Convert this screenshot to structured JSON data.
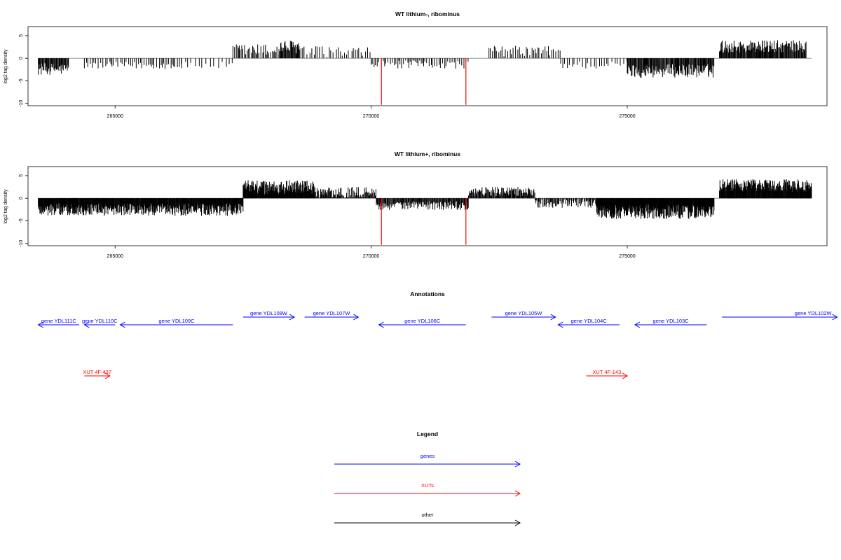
{
  "chart_data": [
    {
      "type": "bar",
      "title": "WT lithium-, ribominus",
      "ylabel": "log2 tag density",
      "xlim": [
        263300,
        278900
      ],
      "ylim": [
        -10.5,
        7
      ],
      "x_ticks": [
        265000,
        270000,
        275000
      ],
      "y_ticks": [
        5,
        0,
        -5,
        -10
      ],
      "y_tick_labels": [
        "5",
        "0",
        "-5",
        "-10"
      ],
      "baseline_range": [
        263500,
        278600
      ],
      "regions": [
        {
          "start": 263500,
          "end": 264100,
          "mean": -2.4,
          "amp": 1.3,
          "density": 0.08
        },
        {
          "start": 264400,
          "end": 266300,
          "mean": -1.6,
          "amp": 0.8,
          "density": 0.025
        },
        {
          "start": 266300,
          "end": 267300,
          "mean": -1.6,
          "amp": 0.8,
          "density": 0.015
        },
        {
          "start": 267300,
          "end": 268200,
          "mean": 1.8,
          "amp": 1.4,
          "density": 0.035
        },
        {
          "start": 268200,
          "end": 268600,
          "mean": 2.5,
          "amp": 1.5,
          "density": 0.08
        },
        {
          "start": 268600,
          "end": 269400,
          "mean": 1.5,
          "amp": 1.2,
          "density": 0.02
        },
        {
          "start": 269400,
          "end": 270000,
          "mean": 1.2,
          "amp": 1.2,
          "density": 0.02
        },
        {
          "start": 270000,
          "end": 271900,
          "mean": -1.4,
          "amp": 0.9,
          "density": 0.03
        },
        {
          "start": 272300,
          "end": 273700,
          "mean": 1.6,
          "amp": 1.2,
          "density": 0.03
        },
        {
          "start": 273700,
          "end": 275000,
          "mean": -1.5,
          "amp": 0.9,
          "density": 0.02
        },
        {
          "start": 275000,
          "end": 276700,
          "mean": -2.8,
          "amp": 1.5,
          "density": 0.08
        },
        {
          "start": 276800,
          "end": 278500,
          "mean": 2.6,
          "amp": 1.4,
          "density": 0.08
        }
      ],
      "highlight_bars": [
        {
          "x": 270200,
          "y": -10.3
        },
        {
          "x": 271850,
          "y": -10.3
        }
      ]
    },
    {
      "type": "bar",
      "title": "WT lithium+, ribominus",
      "ylabel": "log2 tag density",
      "xlim": [
        263300,
        278900
      ],
      "ylim": [
        -10.5,
        7
      ],
      "x_ticks": [
        265000,
        270000,
        275000
      ],
      "y_ticks": [
        5,
        0,
        -5,
        -10
      ],
      "y_tick_labels": [
        "5",
        "0",
        "-5",
        "-10"
      ],
      "baseline_range": [
        263500,
        278600
      ],
      "regions": [
        {
          "start": 263500,
          "end": 267500,
          "mean": -2.5,
          "amp": 1.4,
          "density": 0.12
        },
        {
          "start": 267500,
          "end": 268900,
          "mean": 2.4,
          "amp": 1.6,
          "density": 0.13
        },
        {
          "start": 268900,
          "end": 270100,
          "mean": 1.3,
          "amp": 1.2,
          "density": 0.08
        },
        {
          "start": 270100,
          "end": 271900,
          "mean": -1.6,
          "amp": 1.0,
          "density": 0.08
        },
        {
          "start": 271900,
          "end": 273200,
          "mean": 1.5,
          "amp": 1.0,
          "density": 0.08
        },
        {
          "start": 273200,
          "end": 274400,
          "mean": -1.2,
          "amp": 1.0,
          "density": 0.06
        },
        {
          "start": 274400,
          "end": 276700,
          "mean": -3.0,
          "amp": 1.6,
          "density": 0.14
        },
        {
          "start": 276800,
          "end": 278600,
          "mean": 2.8,
          "amp": 1.4,
          "density": 0.12
        }
      ],
      "highlight_bars": [
        {
          "x": 270200,
          "y": -10.3
        },
        {
          "x": 271850,
          "y": -10.3
        }
      ]
    }
  ],
  "annotations": {
    "title": "Annotations",
    "genes": [
      {
        "label": "gene YDL111C",
        "start": 263500,
        "end": 264300,
        "strand": "-",
        "row": 1
      },
      {
        "label": "gene YDL110C",
        "start": 264400,
        "end": 265000,
        "strand": "-",
        "row": 1
      },
      {
        "label": "gene YDL109C",
        "start": 265100,
        "end": 267300,
        "strand": "-",
        "row": 1
      },
      {
        "label": "gene YDL108W",
        "start": 267500,
        "end": 268500,
        "strand": "+",
        "row": 0
      },
      {
        "label": "gene YDL107W",
        "start": 268700,
        "end": 269750,
        "strand": "+",
        "row": 0
      },
      {
        "label": "gene YDL106C",
        "start": 270150,
        "end": 271850,
        "strand": "-",
        "row": 1
      },
      {
        "label": "gene YDL105W",
        "start": 272350,
        "end": 273600,
        "strand": "+",
        "row": 0
      },
      {
        "label": "gene YDL104C",
        "start": 273650,
        "end": 274850,
        "strand": "-",
        "row": 1
      },
      {
        "label": "gene YDL103C",
        "start": 275150,
        "end": 276550,
        "strand": "-",
        "row": 1
      },
      {
        "label": "gene YDL102W",
        "start": 276850,
        "end": 279100,
        "strand": "+",
        "row": 0
      }
    ],
    "xuts": [
      {
        "label": "XUT 4F-437",
        "start": 264400,
        "end": 264900,
        "strand": "+"
      },
      {
        "label": "XUT 4F-143",
        "start": 274200,
        "end": 275000,
        "strand": "+"
      }
    ]
  },
  "legend": {
    "title": "Legend",
    "items": [
      {
        "label": "genes",
        "color": "#0000ff"
      },
      {
        "label": "XUTs",
        "color": "#ff0000"
      },
      {
        "label": "other",
        "color": "#000000"
      }
    ]
  },
  "colors": {
    "gene": "#0000ff",
    "xut": "#ff0000",
    "highlight": "#ff0000",
    "bar": "#000000",
    "baseline": "#888888"
  }
}
